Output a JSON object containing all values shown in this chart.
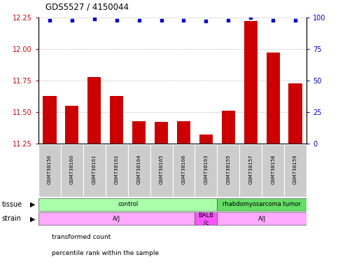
{
  "title": "GDS5527 / 4150044",
  "samples": [
    "GSM738156",
    "GSM738160",
    "GSM738161",
    "GSM738162",
    "GSM738164",
    "GSM738165",
    "GSM738166",
    "GSM738163",
    "GSM738155",
    "GSM738157",
    "GSM738158",
    "GSM738159"
  ],
  "bar_values": [
    11.63,
    11.55,
    11.78,
    11.63,
    11.43,
    11.42,
    11.43,
    11.32,
    11.51,
    12.22,
    11.97,
    11.73
  ],
  "dot_values": [
    98,
    98,
    99,
    98,
    98,
    98,
    98,
    97,
    98,
    100,
    98,
    98
  ],
  "ylim_left": [
    11.25,
    12.25
  ],
  "ylim_right": [
    0,
    100
  ],
  "yticks_left": [
    11.25,
    11.5,
    11.75,
    12.0,
    12.25
  ],
  "yticks_right": [
    0,
    25,
    50,
    75,
    100
  ],
  "bar_color": "#cc0000",
  "dot_color": "#0000cc",
  "tissue_groups": [
    {
      "label": "control",
      "start": 0,
      "end": 8,
      "color": "#aaffaa"
    },
    {
      "label": "rhabdomyosarcoma tumor",
      "start": 8,
      "end": 12,
      "color": "#66dd66"
    }
  ],
  "strain_groups": [
    {
      "label": "A/J",
      "start": 0,
      "end": 7,
      "color": "#ffaaff"
    },
    {
      "label": "BALB\n/c",
      "start": 7,
      "end": 8,
      "color": "#ff55ff"
    },
    {
      "label": "A/J",
      "start": 8,
      "end": 12,
      "color": "#ffaaff"
    }
  ],
  "legend_red": "transformed count",
  "legend_blue": "percentile rank within the sample",
  "bar_width": 0.6,
  "grid_color": "#888888",
  "left_tick_color": "#cc0000",
  "right_tick_color": "#0000cc",
  "sample_box_color": "#cccccc",
  "tissue_label": "tissue",
  "strain_label": "strain"
}
